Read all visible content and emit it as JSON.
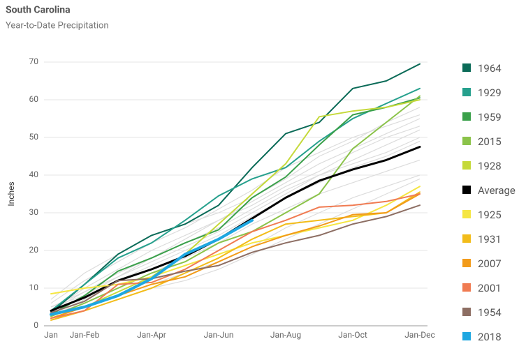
{
  "chart_data": {
    "type": "line",
    "title": "South Carolina",
    "subtitle": "Year-to-Date Precipitation",
    "y_label": "Inches",
    "categories": [
      "Jan",
      "Jan-Feb",
      null,
      "Jan-Apr",
      null,
      "Jan-Jun",
      null,
      "Jan-Aug",
      null,
      "Jan-Oct",
      null,
      "Jan-Dec"
    ],
    "ylim": [
      0,
      70
    ],
    "yticks": [
      0,
      10,
      20,
      30,
      40,
      50,
      60,
      70
    ],
    "grid": true,
    "legend": "right",
    "background_color": "#dcdcdc",
    "background_series": [
      [
        5,
        9,
        13,
        17,
        21,
        25,
        30,
        35,
        40,
        44,
        48,
        52
      ],
      [
        3,
        6,
        10,
        14,
        18,
        22,
        27,
        31,
        35,
        38,
        41,
        44
      ],
      [
        6,
        12,
        17,
        22,
        26,
        31,
        36,
        42,
        46,
        50,
        53,
        56
      ],
      [
        2,
        5,
        8,
        11,
        14,
        17,
        21,
        26,
        30,
        34,
        37,
        40
      ],
      [
        4,
        10,
        15,
        20,
        24,
        28,
        33,
        38,
        43,
        47,
        51,
        55
      ],
      [
        3,
        7,
        12,
        16,
        20,
        24,
        29,
        34,
        38,
        42,
        45,
        49
      ],
      [
        7,
        14,
        19,
        24,
        27,
        30,
        34,
        39,
        45,
        49,
        54,
        58
      ],
      [
        2,
        4,
        7,
        10,
        12,
        15,
        19,
        23,
        27,
        31,
        35,
        39
      ],
      [
        5,
        8,
        13,
        18,
        23,
        28,
        32,
        37,
        41,
        46,
        50,
        53
      ],
      [
        4,
        9,
        14,
        18,
        22,
        26,
        31,
        36,
        40,
        43,
        46,
        50
      ]
    ],
    "series": [
      {
        "name": "1964",
        "color": "#0b6b58",
        "width": 2,
        "values": [
          3.5,
          11,
          19,
          24,
          27,
          32,
          42,
          51,
          54,
          63,
          65,
          69.5
        ]
      },
      {
        "name": "1929",
        "color": "#26a08d",
        "width": 2,
        "values": [
          4,
          11,
          18,
          22,
          28,
          34.5,
          39,
          42,
          49,
          55,
          59,
          63
        ]
      },
      {
        "name": "1959",
        "color": "#3aa04a",
        "width": 2,
        "values": [
          3,
          8,
          14.5,
          18,
          22,
          25.5,
          34,
          39.5,
          48,
          56,
          58,
          60.5
        ]
      },
      {
        "name": "2015",
        "color": "#8bc34a",
        "width": 2,
        "values": [
          2.5,
          6,
          10,
          14,
          17,
          22,
          25,
          30,
          35,
          47,
          54,
          61
        ]
      },
      {
        "name": "1928",
        "color": "#c5d93a",
        "width": 2,
        "values": [
          2,
          5,
          9,
          13,
          19,
          27,
          35,
          43,
          55.5,
          57,
          58,
          60
        ]
      },
      {
        "name": "Average",
        "color": "#000000",
        "width": 3,
        "values": [
          4,
          7.5,
          12,
          15,
          18.5,
          23,
          28.5,
          34,
          38.5,
          41.5,
          44,
          47.5
        ]
      },
      {
        "name": "1925",
        "color": "#f5e642",
        "width": 2,
        "values": [
          8.5,
          10,
          11,
          13,
          16,
          19,
          22,
          24,
          26,
          28,
          32,
          37
        ]
      },
      {
        "name": "1931",
        "color": "#f2bc1a",
        "width": 2,
        "values": [
          1.5,
          4,
          7,
          10,
          14,
          18,
          23,
          27,
          28,
          29,
          30,
          35.5
        ]
      },
      {
        "name": "2007",
        "color": "#f29b1a",
        "width": 2,
        "values": [
          2,
          5,
          8,
          11,
          13,
          17,
          21,
          24,
          26.5,
          29.5,
          30,
          35
        ]
      },
      {
        "name": "2001",
        "color": "#f07b52",
        "width": 2,
        "values": [
          2,
          4,
          11,
          11.5,
          15,
          20,
          25,
          28,
          31.5,
          32,
          33,
          35
        ]
      },
      {
        "name": "1954",
        "color": "#8d6e63",
        "width": 2,
        "values": [
          3.5,
          6.5,
          12,
          12.5,
          14.5,
          16,
          19.5,
          22,
          24,
          27,
          29,
          32
        ]
      },
      {
        "name": "2018",
        "color": "#1ea7e1",
        "width": 4,
        "values": [
          3,
          5,
          8,
          12.5,
          19,
          23,
          28,
          null,
          null,
          null,
          null,
          null
        ]
      }
    ]
  }
}
